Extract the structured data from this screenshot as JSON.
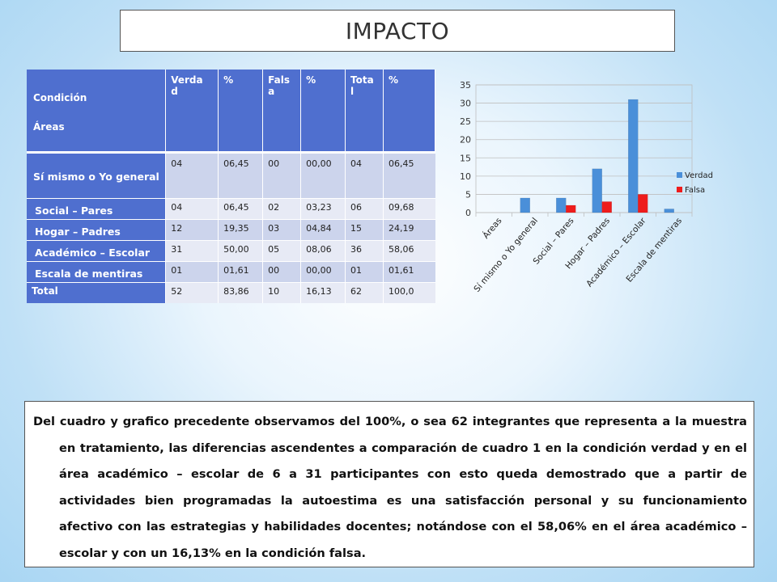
{
  "title": "IMPACTO",
  "table": {
    "header": {
      "condicion": "Condición",
      "areas": "Áreas",
      "columns": [
        "Verda d",
        "%",
        "Fals a",
        "%",
        "Tota l",
        "%"
      ]
    },
    "rows": [
      {
        "area": "Sí mismo o Yo general",
        "values": [
          "04",
          "06,45",
          "00",
          "00,00",
          "04",
          "06,45"
        ]
      },
      {
        "area": "Social – Pares",
        "values": [
          "04",
          "06,45",
          "02",
          "03,23",
          "06",
          "09,68"
        ]
      },
      {
        "area": "Hogar – Padres",
        "values": [
          "12",
          "19,35",
          "03",
          "04,84",
          "15",
          "24,19"
        ]
      },
      {
        "area": "Académico – Escolar",
        "values": [
          "31",
          "50,00",
          "05",
          "08,06",
          "36",
          "58,06"
        ]
      },
      {
        "area": "Escala de mentiras",
        "values": [
          "01",
          "01,61",
          "00",
          "00,00",
          "01",
          "01,61"
        ]
      },
      {
        "area": "Total",
        "values": [
          "52",
          "83,86",
          "10",
          "16,13",
          "62",
          "100,0"
        ]
      }
    ]
  },
  "chart_data": {
    "type": "bar",
    "categories": [
      "Áreas",
      "Sí mismo o Yo general",
      "Social – Pares",
      "Hogar – Padres",
      "Académico – Escolar",
      "Escala de mentiras"
    ],
    "series": [
      {
        "name": "Verdad",
        "color": "#4a8fd9",
        "values": [
          0,
          4,
          4,
          12,
          31,
          1
        ]
      },
      {
        "name": "Falsa",
        "color": "#ee1c1c",
        "values": [
          0,
          0,
          2,
          3,
          5,
          0
        ]
      }
    ],
    "ylim": [
      0,
      35
    ],
    "yticks": [
      0,
      5,
      10,
      15,
      20,
      25,
      30,
      35
    ],
    "grid": true,
    "legend": "right"
  },
  "paragraph": "Del cuadro y grafico precedente observamos del 100%, o sea 62 integrantes que representa a la muestra en tratamiento, las diferencias ascendentes a comparación de cuadro 1 en la condición verdad y en el área académico – escolar de 6 a 31 participantes con esto queda demostrado que a partir de actividades bien programadas la autoestima es una satisfacción personal y su funcionamiento afectivo con las estrategias y habilidades docentes; notándose con el 58,06% en el área académico – escolar y con un 16,13% en la condición falsa."
}
